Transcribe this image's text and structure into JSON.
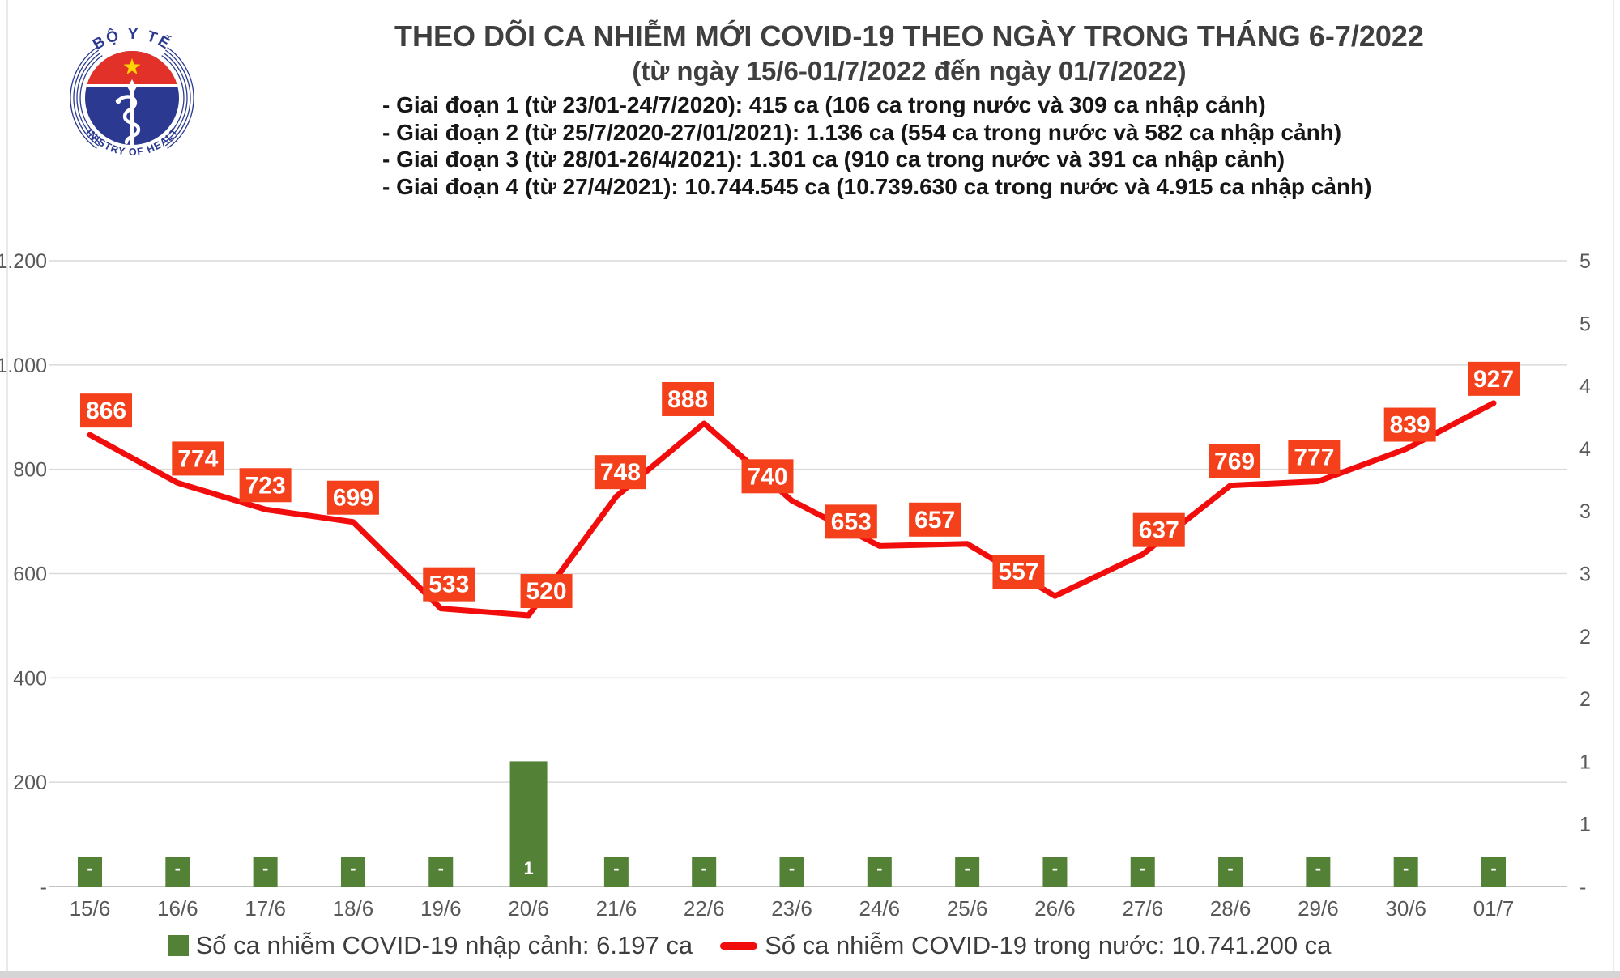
{
  "header": {
    "title": "THEO DÕI CA NHIỄM MỚI COVID-19 THEO NGÀY TRONG THÁNG 6-7/2022",
    "subtitle": "(từ ngày 15/6-01/7/2022 đến ngày 01/7/2022)",
    "bullets": [
      "- Giai đoạn 1 (từ 23/01-24/7/2020): 415 ca (106 ca trong nước và 309 ca nhập cảnh)",
      "- Giai đoạn 2 (từ 25/7/2020-27/01/2021): 1.136 ca (554 ca trong nước và 582 ca nhập cảnh)",
      "- Giai đoạn 3 (từ 28/01-26/4/2021): 1.301 ca (910 ca trong nước và 391 ca nhập cảnh)",
      "- Giai đoạn 4 (từ 27/4/2021): 10.744.545 ca (10.739.630 ca trong nước và 4.915 ca nhập cảnh)"
    ],
    "logo": {
      "top_text": "BỘ Y TẾ",
      "bottom_text": "MINISTRY OF HEALTH",
      "colors": {
        "blue": "#2b3a90",
        "red": "#e23128",
        "star": "#ffd400"
      }
    }
  },
  "chart_data": {
    "type": "line+bar combo",
    "categories": [
      "15/6",
      "16/6",
      "17/6",
      "18/6",
      "19/6",
      "20/6",
      "21/6",
      "22/6",
      "23/6",
      "24/6",
      "25/6",
      "26/6",
      "27/6",
      "28/6",
      "29/6",
      "30/6",
      "01/7"
    ],
    "series": [
      {
        "name": "Số ca nhiễm COVID-19 trong nước",
        "type": "line",
        "axis": "left",
        "color": "#f20d0d",
        "values": [
          866,
          774,
          723,
          699,
          533,
          520,
          748,
          888,
          740,
          653,
          657,
          557,
          637,
          769,
          777,
          839,
          927
        ]
      },
      {
        "name": "Số ca nhiễm COVID-19 nhập cảnh",
        "type": "bar",
        "axis": "right",
        "color": "#538135",
        "values": [
          0,
          0,
          0,
          0,
          0,
          1,
          0,
          0,
          0,
          0,
          0,
          0,
          0,
          0,
          0,
          0,
          0
        ],
        "labels": [
          "-",
          "-",
          "-",
          "-",
          "-",
          "1",
          "-",
          "-",
          "-",
          "-",
          "-",
          "-",
          "-",
          "-",
          "-",
          "-",
          "-"
        ]
      }
    ],
    "left_axis": {
      "min": 0,
      "max": 1200,
      "ticks": [
        "1.200",
        "1.000",
        "800",
        "600",
        "400",
        "200",
        "-"
      ]
    },
    "right_axis": {
      "min": 0,
      "max": 5,
      "ticks": [
        "5",
        "5",
        "4",
        "4",
        "3",
        "3",
        "2",
        "2",
        "1",
        "1",
        "-"
      ]
    },
    "data_label_box_color": "#f4411c",
    "grid": true,
    "legend_position": "bottom"
  },
  "legend": {
    "bar_label": "Số ca nhiễm COVID-19 nhập cảnh: 6.197 ca",
    "line_label": "Số ca nhiễm COVID-19 trong nước: 10.741.200 ca"
  }
}
